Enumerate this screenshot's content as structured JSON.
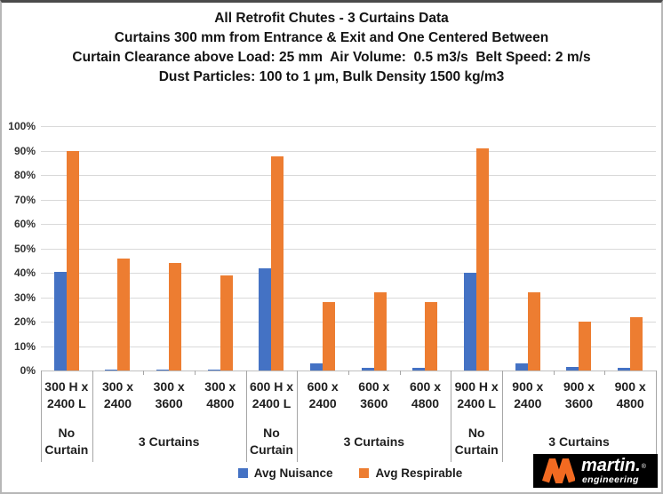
{
  "title": {
    "lines": [
      "All Retrofit Chutes - 3 Curtains Data",
      "Curtains 300 mm from Entrance & Exit and One Centered Between",
      "Curtain Clearance above Load: 25 mm  Air Volume:  0.5 m3/s  Belt Speed: 2 m/s",
      "Dust Particles: 100 to 1 μm, Bulk Density 1500 kg/m3"
    ]
  },
  "chart_data": {
    "type": "bar",
    "title": "All Retrofit Chutes - 3 Curtains Data",
    "categories": [
      "300 H x\n2400 L",
      "300 x\n2400",
      "300 x\n3600",
      "300 x\n4800",
      "600 H x\n2400 L",
      "600 x\n2400",
      "600 x\n3600",
      "600 x\n4800",
      "900 H x\n2400 L",
      "900 x\n2400",
      "900 x\n3600",
      "900 x\n4800"
    ],
    "category_groups": [
      {
        "label": "No Curtain",
        "span": 1
      },
      {
        "label": "3 Curtains",
        "span": 3
      },
      {
        "label": "No Curtain",
        "span": 1
      },
      {
        "label": "3 Curtains",
        "span": 3
      },
      {
        "label": "No Curtain",
        "span": 1
      },
      {
        "label": "3 Curtains",
        "span": 3
      }
    ],
    "series": [
      {
        "name": "Avg Nuisance",
        "color": "#4472C4",
        "values": [
          40.5,
          0.5,
          0.3,
          0.3,
          42,
          3,
          1,
          1,
          40,
          3,
          1.5,
          1
        ]
      },
      {
        "name": "Avg Respirable",
        "color": "#ED7D31",
        "values": [
          90,
          46,
          44,
          39,
          87.5,
          28,
          32,
          28,
          91,
          32,
          20,
          22
        ]
      }
    ],
    "xlabel": "",
    "ylabel": "",
    "ylim": [
      0,
      100
    ],
    "y_tick_labels": [
      "0%",
      "10%",
      "20%",
      "30%",
      "40%",
      "50%",
      "60%",
      "70%",
      "80%",
      "90%",
      "100%"
    ],
    "grid": true,
    "legend_position": "bottom"
  },
  "legend": {
    "items": [
      {
        "label": "Avg Nuisance",
        "color": "#4472C4"
      },
      {
        "label": "Avg Respirable",
        "color": "#ED7D31"
      }
    ]
  },
  "logo": {
    "brand": "martin.",
    "registered": "®",
    "subtitle": "engineering",
    "mark_color": "#F26A21",
    "background": "#000000"
  },
  "colors": {
    "gridline": "#D9D9D9",
    "axis_line": "#BFBFBF",
    "separator": "#A6A6A6"
  }
}
